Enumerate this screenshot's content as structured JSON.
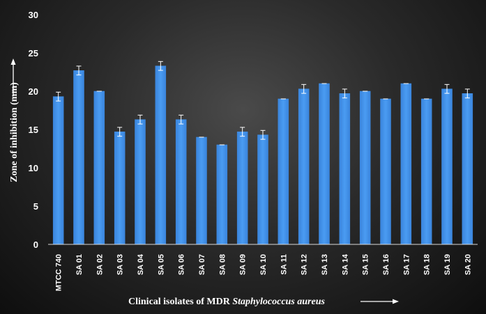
{
  "chart_data": {
    "type": "bar",
    "xlabel_prefix": "Clinical  isolates of MDR ",
    "xlabel_italic": "Staphylococcus aureus",
    "ylabel": "Zone  of inhibition  (mm)",
    "ylim": [
      0,
      30
    ],
    "yticks": [
      "0",
      "5",
      "10",
      "15",
      "20",
      "25",
      "30"
    ],
    "grid": false,
    "bar_color": "#3f8fe8",
    "categories": [
      "MTCC 740",
      "SA 01",
      "SA 02",
      "SA 03",
      "SA 04",
      "SA 05",
      "SA 06",
      "SA 07",
      "SA 08",
      "SA 09",
      "SA 10",
      "SA 11",
      "SA 12",
      "SA 13",
      "SA 14",
      "SA 15",
      "SA 16",
      "SA 17",
      "SA 18",
      "SA 19",
      "SA 20"
    ],
    "values": [
      19.3,
      22.7,
      20.0,
      14.7,
      16.3,
      23.3,
      16.3,
      14.0,
      13.0,
      14.7,
      14.3,
      19.0,
      20.3,
      21.0,
      19.7,
      20.0,
      19.0,
      21.0,
      19.0,
      20.3,
      19.7
    ],
    "errors": [
      0.58,
      0.58,
      0,
      0.58,
      0.58,
      0.58,
      0.58,
      0,
      0,
      0.58,
      0.58,
      0,
      0.58,
      0,
      0.58,
      0,
      0,
      0,
      0,
      0.58,
      0.58
    ]
  }
}
